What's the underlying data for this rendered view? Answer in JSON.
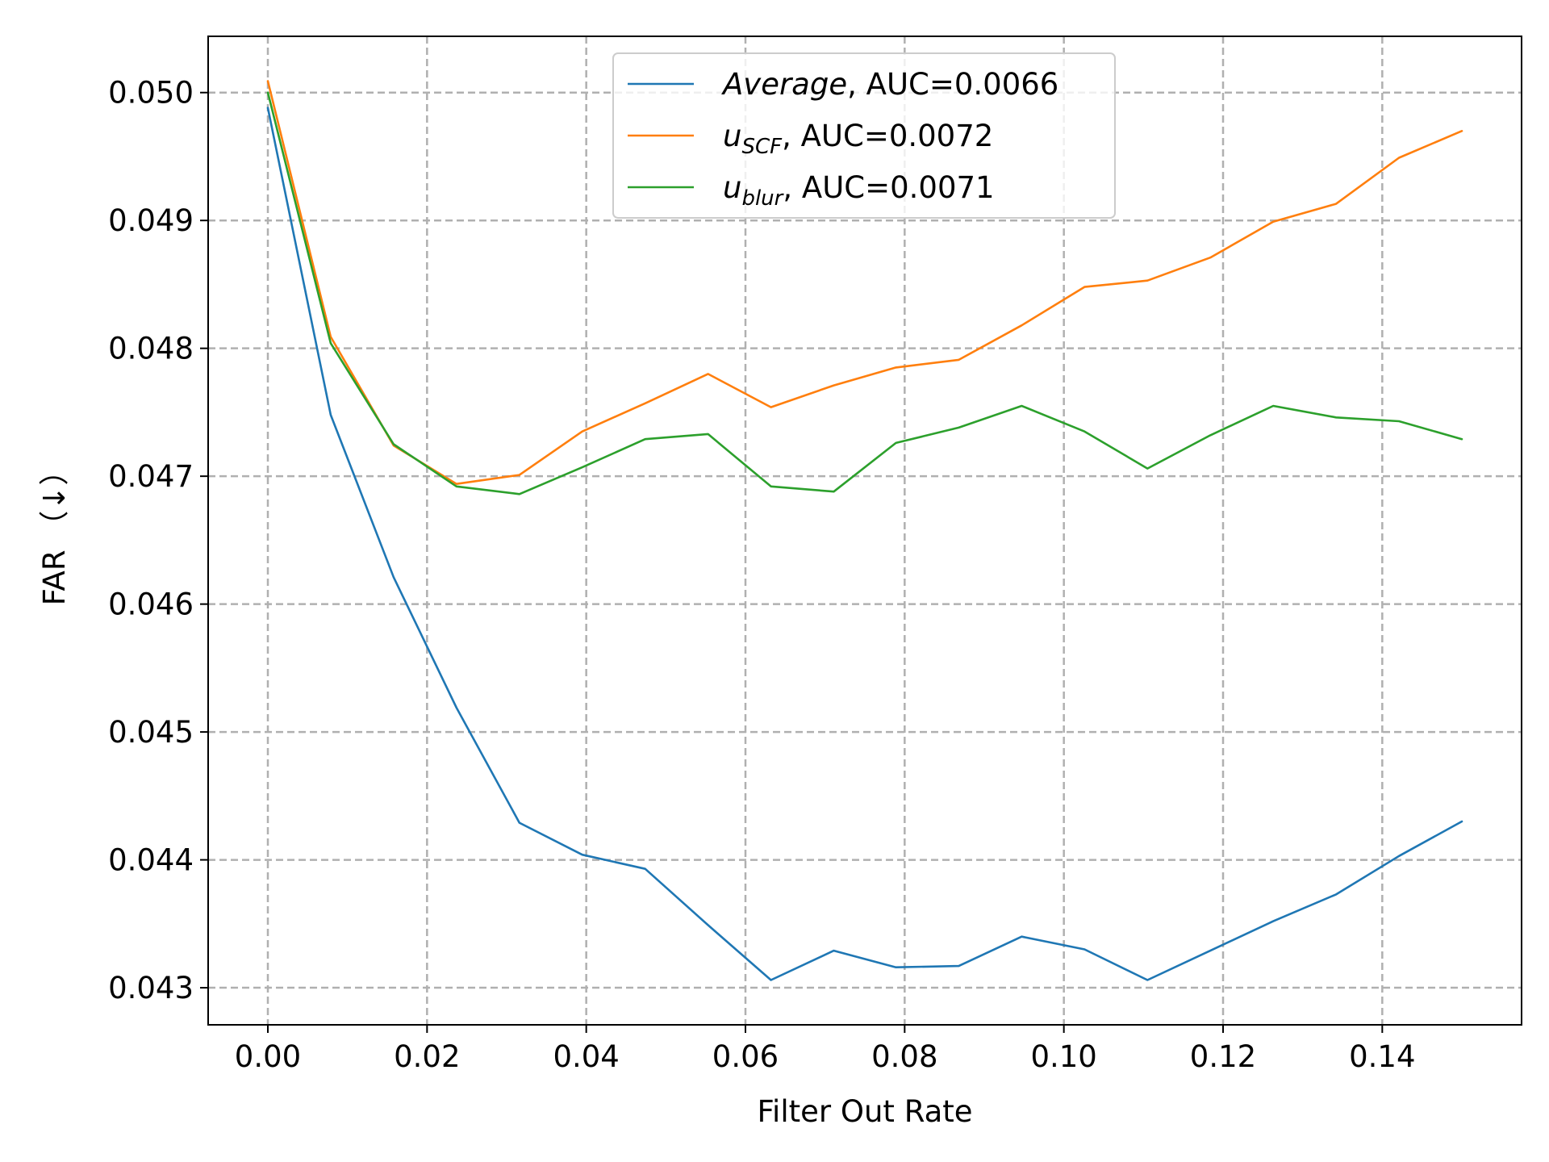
{
  "chart_data": {
    "type": "line",
    "title": "",
    "xlabel": "Filter Out Rate",
    "ylabel": "FAR （↓）",
    "xlim": [
      -0.0075,
      0.1575
    ],
    "ylim": [
      0.04271,
      0.05044
    ],
    "xticks": [
      0.0,
      0.02,
      0.04,
      0.06,
      0.08,
      0.1,
      0.12,
      0.14
    ],
    "xtick_labels": [
      "0.00",
      "0.02",
      "0.04",
      "0.06",
      "0.08",
      "0.10",
      "0.12",
      "0.14"
    ],
    "yticks": [
      0.043,
      0.044,
      0.045,
      0.046,
      0.047,
      0.048,
      0.049,
      0.05
    ],
    "ytick_labels": [
      "0.043",
      "0.044",
      "0.045",
      "0.046",
      "0.047",
      "0.048",
      "0.049",
      "0.050"
    ],
    "grid": true,
    "legend_position": "top-center",
    "x": [
      0.0,
      0.0079,
      0.0158,
      0.0237,
      0.0316,
      0.0395,
      0.0474,
      0.0553,
      0.0632,
      0.0711,
      0.0789,
      0.0868,
      0.0947,
      0.1026,
      0.1105,
      0.1184,
      0.1263,
      0.1342,
      0.1421,
      0.15
    ],
    "series": [
      {
        "name_main": "Average",
        "name_sub": "",
        "name_suffix": ", AUC=0.0066",
        "color": "#1f77b4",
        "values": [
          0.04988,
          0.04748,
          0.04621,
          0.04519,
          0.04429,
          0.04404,
          0.04393,
          0.04349,
          0.04306,
          0.04329,
          0.04316,
          0.04317,
          0.0434,
          0.0433,
          0.04306,
          0.04329,
          0.04352,
          0.04373,
          0.04403,
          0.0443
        ]
      },
      {
        "name_main": "u",
        "name_sub": "SCF",
        "name_suffix": ", AUC=0.0072",
        "color": "#ff7f0e",
        "values": [
          0.05009,
          0.04809,
          0.04724,
          0.04694,
          0.04701,
          0.04735,
          0.04757,
          0.0478,
          0.04754,
          0.04771,
          0.04785,
          0.04791,
          0.04818,
          0.04848,
          0.04853,
          0.04871,
          0.04899,
          0.04913,
          0.04949,
          0.0497
        ]
      },
      {
        "name_main": "u",
        "name_sub": "blur",
        "name_suffix": ", AUC=0.0071",
        "color": "#2ca02c",
        "values": [
          0.05,
          0.04804,
          0.04725,
          0.04692,
          0.04686,
          0.04707,
          0.04729,
          0.04733,
          0.04692,
          0.04688,
          0.04726,
          0.04738,
          0.04755,
          0.04735,
          0.04706,
          0.04732,
          0.04755,
          0.04746,
          0.04743,
          0.04729
        ]
      }
    ]
  }
}
